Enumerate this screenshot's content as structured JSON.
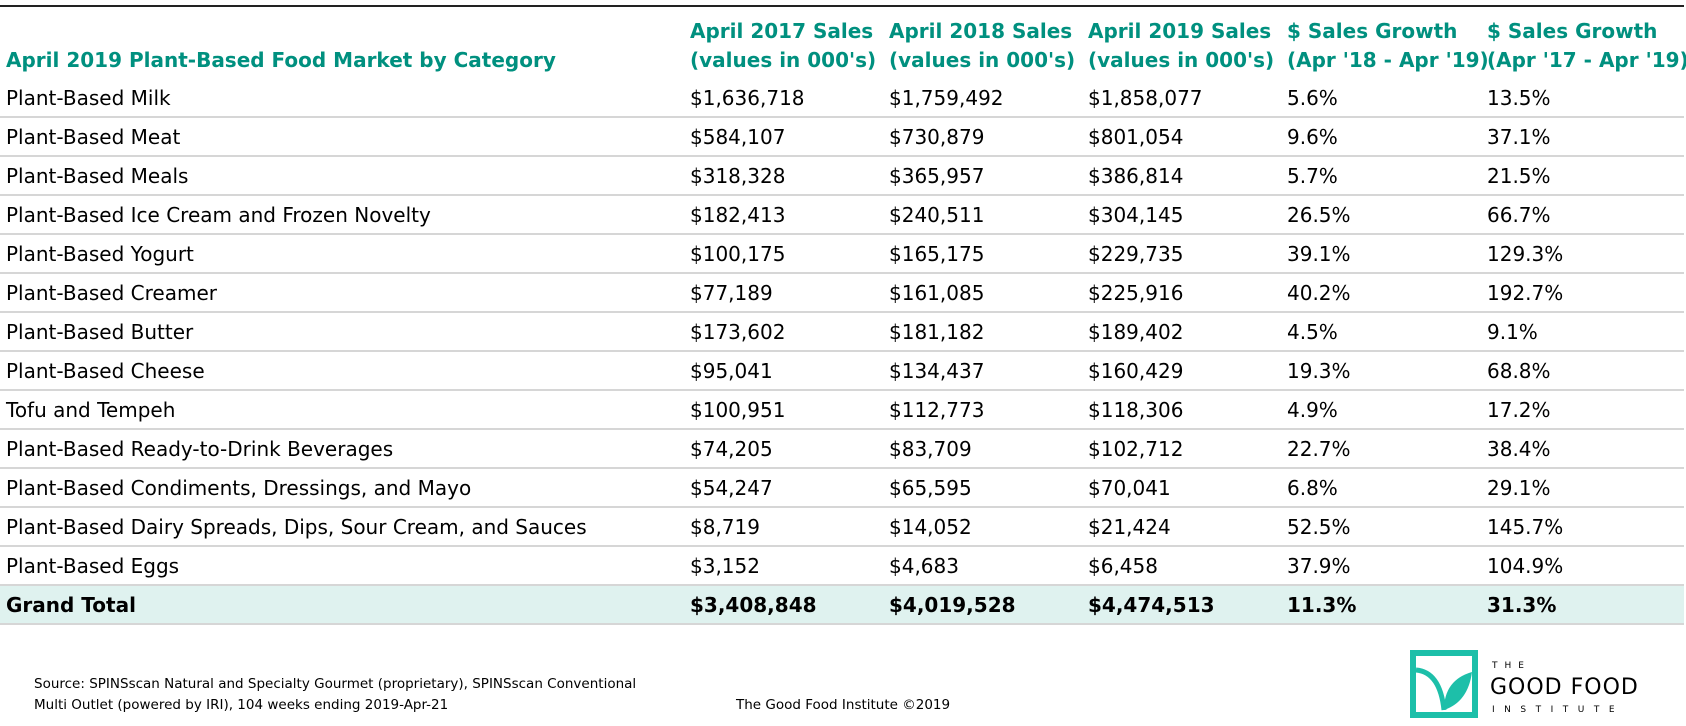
{
  "header": {
    "title": "April 2019 Plant-Based Food Market by Category"
  },
  "table": {
    "columns": [
      [
        "April 2017 Sales",
        "(values in 000's)"
      ],
      [
        "April 2018 Sales",
        "(values in 000's)"
      ],
      [
        "April 2019 Sales",
        "(values in 000's)"
      ],
      [
        "$ Sales Growth",
        "(Apr '18 - Apr '19)"
      ],
      [
        "$ Sales Growth",
        "(Apr '17 - Apr '19)"
      ]
    ],
    "rows": [
      [
        "Plant-Based Milk",
        "$1,636,718",
        "$1,759,492",
        "$1,858,077",
        "5.6%",
        "13.5%"
      ],
      [
        "Plant-Based Meat",
        "$584,107",
        "$730,879",
        "$801,054",
        "9.6%",
        "37.1%"
      ],
      [
        "Plant-Based Meals",
        "$318,328",
        "$365,957",
        "$386,814",
        "5.7%",
        "21.5%"
      ],
      [
        "Plant-Based Ice Cream and Frozen Novelty",
        "$182,413",
        "$240,511",
        "$304,145",
        "26.5%",
        "66.7%"
      ],
      [
        "Plant-Based Yogurt",
        "$100,175",
        "$165,175",
        "$229,735",
        "39.1%",
        "129.3%"
      ],
      [
        "Plant-Based Creamer",
        "$77,189",
        "$161,085",
        "$225,916",
        "40.2%",
        "192.7%"
      ],
      [
        "Plant-Based Butter",
        "$173,602",
        "$181,182",
        "$189,402",
        "4.5%",
        "9.1%"
      ],
      [
        "Plant-Based Cheese",
        "$95,041",
        "$134,437",
        "$160,429",
        "19.3%",
        "68.8%"
      ],
      [
        "Tofu and Tempeh",
        "$100,951",
        "$112,773",
        "$118,306",
        "4.9%",
        "17.2%"
      ],
      [
        "Plant-Based Ready-to-Drink Beverages",
        "$74,205",
        "$83,709",
        "$102,712",
        "22.7%",
        "38.4%"
      ],
      [
        "Plant-Based Condiments, Dressings, and Mayo",
        "$54,247",
        "$65,595",
        "$70,041",
        "6.8%",
        "29.1%"
      ],
      [
        "Plant-Based Dairy Spreads, Dips, Sour Cream, and Sauces",
        "$8,719",
        "$14,052",
        "$21,424",
        "52.5%",
        "145.7%"
      ],
      [
        "Plant-Based Eggs",
        "$3,152",
        "$4,683",
        "$6,458",
        "37.9%",
        "104.9%"
      ]
    ],
    "total": [
      "Grand Total",
      "$3,408,848",
      "$4,019,528",
      "$4,474,513",
      "11.3%",
      "31.3%"
    ]
  },
  "footer": {
    "source": [
      "Source: SPINSscan Natural and Specialty Gourmet (proprietary), SPINSscan Conventional",
      "Multi Outlet (powered by IRI), 104 weeks ending 2019-Apr-21"
    ],
    "credit": "The Good Food Institute ©2019",
    "logo": [
      "THE",
      "GOOD FOOD",
      "INSTITUTE"
    ]
  }
}
